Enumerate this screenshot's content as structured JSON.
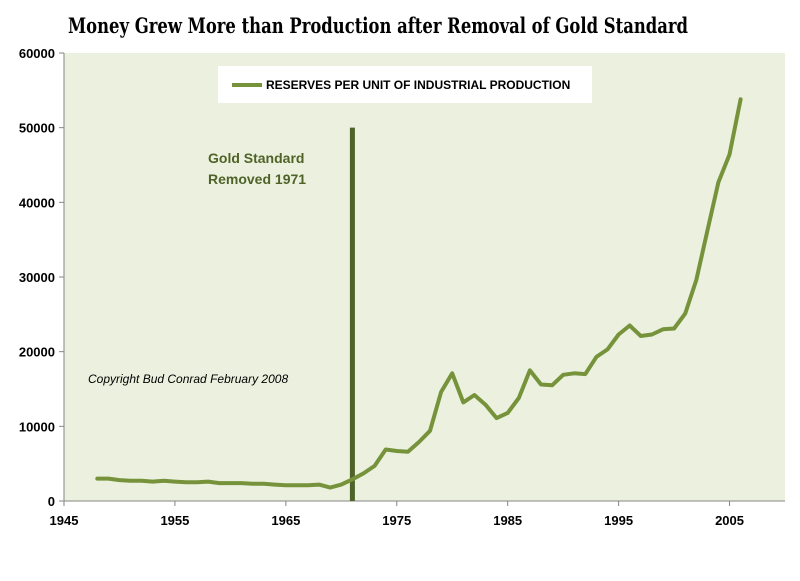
{
  "chart_data": {
    "type": "line",
    "title": "Money Grew More than Production after Removal of Gold Standard",
    "xlabel": "",
    "ylabel": "",
    "xlim": [
      1945,
      2010
    ],
    "ylim": [
      0,
      60000
    ],
    "x_ticks": [
      1945,
      1955,
      1965,
      1975,
      1985,
      1995,
      2005
    ],
    "y_ticks": [
      0,
      10000,
      20000,
      30000,
      40000,
      50000,
      60000
    ],
    "grid": false,
    "legend": "top-center",
    "series": [
      {
        "name": "RESERVES PER UNIT OF INDUSTRIAL PRODUCTION",
        "color": "#76933c",
        "x": [
          1948,
          1949,
          1950,
          1951,
          1952,
          1953,
          1954,
          1955,
          1956,
          1957,
          1958,
          1959,
          1960,
          1961,
          1962,
          1963,
          1964,
          1965,
          1966,
          1967,
          1968,
          1969,
          1970,
          1971,
          1972,
          1973,
          1974,
          1975,
          1976,
          1977,
          1978,
          1979,
          1980,
          1981,
          1982,
          1983,
          1984,
          1985,
          1986,
          1987,
          1988,
          1989,
          1990,
          1991,
          1992,
          1993,
          1994,
          1995,
          1996,
          1997,
          1998,
          1999,
          2000,
          2001,
          2002,
          2003,
          2004,
          2005,
          2006
        ],
        "y": [
          3000,
          3000,
          2800,
          2700,
          2700,
          2600,
          2700,
          2600,
          2500,
          2500,
          2600,
          2400,
          2400,
          2400,
          2300,
          2300,
          2200,
          2100,
          2100,
          2100,
          2200,
          1800,
          2200,
          2900,
          3700,
          4700,
          6900,
          6700,
          6600,
          7900,
          9400,
          14600,
          17100,
          13200,
          14200,
          12900,
          11100,
          11800,
          13800,
          17500,
          15600,
          15500,
          16900,
          17100,
          17000,
          19300,
          20300,
          22300,
          23500,
          22100,
          22300,
          23000,
          23100,
          25100,
          29600,
          36200,
          42700,
          46400,
          53800
        ]
      }
    ],
    "annotations": {
      "vline_year": 1971,
      "vline_color": "#4f6228",
      "gold_line1": "Gold Standard",
      "gold_line2": "Removed 1971",
      "copyright": "Copyright Bud Conrad  February 2008"
    },
    "colors": {
      "plot_background": "#ebf1de",
      "line": "#76933c",
      "annotation": "#4f6228"
    }
  }
}
